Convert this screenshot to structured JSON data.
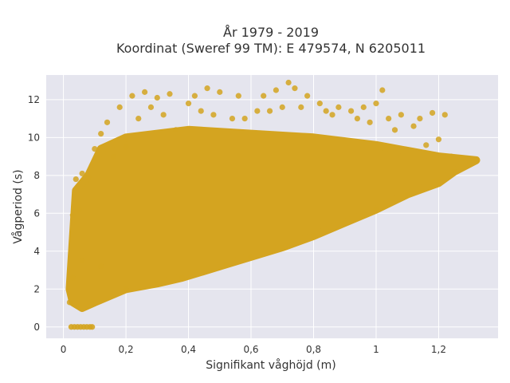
{
  "chart_data": {
    "type": "scatter",
    "title_lines": [
      "År 1979 - 2019",
      "Koordinat (Sweref 99 TM): E 479574, N 6205011"
    ],
    "xlabel": "Signifikant våghöjd (m)",
    "ylabel": "Vågperiod (s)",
    "xlim": [
      -0.055,
      1.39
    ],
    "ylim": [
      -0.6,
      13.3
    ],
    "x_ticks": [
      0,
      0.2,
      0.4,
      0.6,
      0.8,
      1,
      1.2
    ],
    "x_tick_labels": [
      "0",
      "0,2",
      "0,4",
      "0,6",
      "0,8",
      "1",
      "1,2"
    ],
    "y_ticks": [
      0,
      2,
      4,
      6,
      8,
      10,
      12
    ],
    "y_tick_labels": [
      "0",
      "2",
      "4",
      "6",
      "8",
      "10",
      "12"
    ],
    "grid": true,
    "marker_color": "#d4a420",
    "plot_background": "#e5e5ee",
    "points": [
      [
        0.02,
        1.3
      ],
      [
        0.03,
        2.6
      ],
      [
        0.03,
        5.9
      ],
      [
        0.04,
        7.8
      ],
      [
        0.05,
        6.2
      ],
      [
        0.06,
        3.5
      ],
      [
        0.06,
        8.1
      ],
      [
        0.08,
        7.9
      ],
      [
        0.1,
        9.4
      ],
      [
        0.12,
        10.2
      ],
      [
        0.12,
        3.2
      ],
      [
        0.14,
        10.8
      ],
      [
        0.16,
        9.0
      ],
      [
        0.18,
        11.6
      ],
      [
        0.2,
        9.5
      ],
      [
        0.2,
        2.0
      ],
      [
        0.22,
        12.2
      ],
      [
        0.24,
        11.0
      ],
      [
        0.26,
        12.4
      ],
      [
        0.28,
        11.6
      ],
      [
        0.3,
        2.3
      ],
      [
        0.3,
        12.1
      ],
      [
        0.32,
        11.2
      ],
      [
        0.34,
        12.3
      ],
      [
        0.36,
        10.4
      ],
      [
        0.38,
        2.6
      ],
      [
        0.4,
        11.8
      ],
      [
        0.42,
        12.2
      ],
      [
        0.44,
        11.4
      ],
      [
        0.46,
        12.6
      ],
      [
        0.48,
        11.2
      ],
      [
        0.5,
        12.4
      ],
      [
        0.52,
        3.3
      ],
      [
        0.54,
        11.0
      ],
      [
        0.56,
        12.2
      ],
      [
        0.58,
        11.0
      ],
      [
        0.6,
        3.7
      ],
      [
        0.62,
        11.4
      ],
      [
        0.64,
        12.2
      ],
      [
        0.66,
        11.4
      ],
      [
        0.68,
        12.5
      ],
      [
        0.7,
        4.2
      ],
      [
        0.7,
        11.6
      ],
      [
        0.72,
        12.9
      ],
      [
        0.74,
        12.6
      ],
      [
        0.76,
        11.6
      ],
      [
        0.78,
        12.2
      ],
      [
        0.8,
        4.8
      ],
      [
        0.82,
        11.8
      ],
      [
        0.84,
        11.4
      ],
      [
        0.86,
        11.2
      ],
      [
        0.88,
        11.6
      ],
      [
        0.9,
        5.5
      ],
      [
        0.92,
        11.4
      ],
      [
        0.94,
        11.0
      ],
      [
        0.96,
        11.6
      ],
      [
        0.98,
        10.8
      ],
      [
        1.0,
        6.2
      ],
      [
        1.0,
        11.8
      ],
      [
        1.02,
        12.5
      ],
      [
        1.04,
        11.0
      ],
      [
        1.06,
        10.4
      ],
      [
        1.08,
        11.2
      ],
      [
        1.1,
        7.0
      ],
      [
        1.12,
        10.6
      ],
      [
        1.14,
        11.0
      ],
      [
        1.16,
        9.6
      ],
      [
        1.18,
        11.3
      ],
      [
        1.2,
        7.6
      ],
      [
        1.2,
        9.9
      ],
      [
        1.22,
        11.2
      ],
      [
        1.24,
        9.0
      ],
      [
        1.25,
        8.2
      ],
      [
        1.28,
        8.9
      ],
      [
        1.3,
        8.7
      ],
      [
        1.32,
        8.8
      ]
    ],
    "zero_period_points": [
      [
        0.025,
        0
      ],
      [
        0.035,
        0
      ],
      [
        0.045,
        0
      ],
      [
        0.055,
        0
      ],
      [
        0.065,
        0
      ],
      [
        0.075,
        0
      ],
      [
        0.085,
        0
      ],
      [
        0.092,
        0
      ]
    ]
  }
}
